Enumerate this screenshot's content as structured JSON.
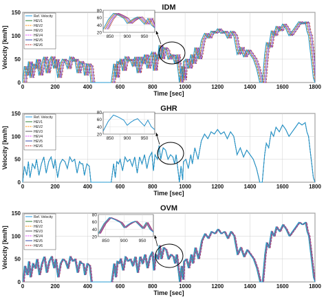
{
  "chart_data": [
    {
      "type": "line",
      "title": "IDM",
      "xlabel": "Time [sec]",
      "ylabel": "Velocity [km/h]",
      "xlim": [
        0,
        1800
      ],
      "ylim": [
        0,
        150
      ],
      "xticks": [
        "0",
        "200",
        "400",
        "600",
        "800",
        "1000",
        "1200",
        "1400",
        "1600",
        "1800"
      ],
      "yticks": [
        "0",
        "50",
        "100",
        "150"
      ],
      "grid": true,
      "legend_position": "top-left",
      "colors": [
        "#1f9be0",
        "#2e7d32",
        "#ff8c00",
        "#5a5a5a",
        "#e040fb",
        "#3949ab",
        "#c62828"
      ],
      "legend": [
        "Ref. Velocity",
        "HEV1",
        "HEV2",
        "HEV3",
        "HEV4",
        "HEV5",
        "HEV6"
      ],
      "reference": {
        "name": "Ref. Velocity",
        "x": [
          0,
          10,
          25,
          35,
          45,
          60,
          75,
          85,
          100,
          115,
          130,
          145,
          160,
          175,
          190,
          200,
          215,
          230,
          245,
          260,
          275,
          290,
          305,
          320,
          335,
          350,
          360,
          370,
          380,
          395,
          410,
          420,
          430,
          445,
          460,
          475,
          490,
          505,
          520,
          535,
          545,
          560,
          570,
          580,
          590,
          600,
          615,
          630,
          645,
          660,
          675,
          690,
          705,
          720,
          735,
          750,
          765,
          780,
          795,
          805,
          815,
          830,
          840,
          850,
          865,
          880,
          895,
          910,
          925,
          935,
          945,
          955,
          965,
          975,
          985,
          990,
          1005,
          1020,
          1035,
          1045,
          1060,
          1080,
          1100,
          1120,
          1140,
          1160,
          1180,
          1200,
          1220,
          1240,
          1260,
          1280,
          1300,
          1320,
          1340,
          1360,
          1380,
          1400,
          1420,
          1440,
          1460,
          1475,
          1490,
          1500,
          1515,
          1530,
          1545,
          1560,
          1580,
          1600,
          1620,
          1640,
          1660,
          1680,
          1700,
          1720,
          1740,
          1750,
          1760,
          1770,
          1780,
          1790,
          1800
        ],
        "values": [
          0,
          35,
          15,
          45,
          10,
          40,
          30,
          50,
          15,
          40,
          55,
          20,
          45,
          55,
          30,
          50,
          10,
          40,
          50,
          45,
          30,
          55,
          45,
          50,
          20,
          45,
          40,
          40,
          15,
          40,
          35,
          0,
          0,
          0,
          0,
          0,
          0,
          0,
          0,
          0,
          0,
          40,
          10,
          45,
          40,
          50,
          25,
          55,
          45,
          50,
          35,
          55,
          20,
          55,
          40,
          60,
          30,
          55,
          65,
          25,
          60,
          50,
          80,
          50,
          75,
          70,
          50,
          60,
          55,
          40,
          60,
          30,
          0,
          35,
          5,
          45,
          50,
          30,
          60,
          40,
          75,
          50,
          90,
          105,
          95,
          110,
          105,
          115,
          105,
          110,
          95,
          110,
          100,
          60,
          75,
          55,
          70,
          60,
          50,
          30,
          0,
          0,
          60,
          85,
          75,
          110,
          100,
          120,
          110,
          125,
          115,
          100,
          110,
          120,
          130,
          125,
          130,
          110,
          100,
          70,
          40,
          10,
          0
        ]
      },
      "inset": {
        "xlim": [
          830,
          980
        ],
        "ylim": [
          20,
          80
        ],
        "xticks": [
          "850",
          "900",
          "950"
        ],
        "yticks": [
          "20",
          "40",
          "60",
          "80"
        ],
        "x": [
          830,
          845,
          860,
          875,
          890,
          900,
          910,
          920,
          930,
          940,
          950,
          960,
          970,
          980
        ],
        "values": [
          28,
          55,
          72,
          66,
          58,
          44,
          52,
          58,
          62,
          52,
          42,
          58,
          40,
          32
        ]
      }
    },
    {
      "type": "line",
      "title": "GHR",
      "xlabel": "Time [sec]",
      "ylabel": "Velocity [km/h]",
      "xlim": [
        0,
        1800
      ],
      "ylim": [
        0,
        150
      ],
      "xticks": [
        "0",
        "200",
        "400",
        "600",
        "800",
        "1000",
        "1200",
        "1400",
        "1600",
        "1800"
      ],
      "yticks": [
        "0",
        "50",
        "100",
        "150"
      ],
      "grid": true,
      "legend_position": "top-left",
      "colors": [
        "#1f9be0",
        "#2e7d32",
        "#ff8c00",
        "#5a5a5a",
        "#e040fb",
        "#3949ab",
        "#c62828"
      ],
      "legend": [
        "Ref. Velocity",
        "HEV1",
        "HEV2",
        "HEV3",
        "HEV4",
        "HEV5",
        "HEV6"
      ],
      "reference": {
        "name": "Ref. Velocity",
        "x": [
          0,
          10,
          25,
          35,
          45,
          60,
          75,
          85,
          100,
          115,
          130,
          145,
          160,
          175,
          190,
          200,
          215,
          230,
          245,
          260,
          275,
          290,
          305,
          320,
          335,
          350,
          360,
          370,
          380,
          395,
          410,
          420,
          430,
          445,
          460,
          475,
          490,
          505,
          520,
          535,
          545,
          560,
          570,
          580,
          590,
          600,
          615,
          630,
          645,
          660,
          675,
          690,
          705,
          720,
          735,
          750,
          765,
          780,
          795,
          805,
          815,
          830,
          840,
          850,
          865,
          880,
          895,
          910,
          925,
          935,
          945,
          955,
          965,
          975,
          985,
          990,
          1005,
          1020,
          1035,
          1045,
          1060,
          1080,
          1100,
          1120,
          1140,
          1160,
          1180,
          1200,
          1220,
          1240,
          1260,
          1280,
          1300,
          1320,
          1340,
          1360,
          1380,
          1400,
          1420,
          1440,
          1460,
          1475,
          1490,
          1500,
          1515,
          1530,
          1545,
          1560,
          1580,
          1600,
          1620,
          1640,
          1660,
          1680,
          1700,
          1720,
          1740,
          1750,
          1760,
          1770,
          1780,
          1790,
          1800
        ],
        "values": [
          0,
          35,
          15,
          45,
          10,
          40,
          30,
          50,
          15,
          40,
          55,
          20,
          45,
          55,
          30,
          50,
          10,
          40,
          50,
          45,
          30,
          55,
          45,
          50,
          20,
          45,
          40,
          40,
          15,
          40,
          35,
          0,
          0,
          0,
          0,
          0,
          0,
          0,
          0,
          0,
          0,
          40,
          10,
          45,
          40,
          50,
          25,
          55,
          45,
          50,
          35,
          55,
          20,
          55,
          40,
          60,
          30,
          55,
          65,
          25,
          60,
          50,
          80,
          50,
          75,
          70,
          50,
          60,
          55,
          40,
          60,
          30,
          0,
          35,
          5,
          45,
          50,
          30,
          60,
          40,
          75,
          50,
          90,
          105,
          95,
          110,
          105,
          115,
          105,
          110,
          95,
          110,
          100,
          60,
          75,
          55,
          70,
          60,
          50,
          30,
          0,
          0,
          60,
          85,
          75,
          110,
          100,
          120,
          110,
          125,
          115,
          100,
          110,
          120,
          130,
          125,
          130,
          110,
          100,
          70,
          40,
          10,
          0
        ]
      },
      "inset": {
        "xlim": [
          830,
          980
        ],
        "ylim": [
          20,
          80
        ],
        "xticks": [
          "850",
          "900",
          "950"
        ],
        "yticks": [
          "20",
          "40",
          "60",
          "80"
        ],
        "x": [
          830,
          845,
          860,
          875,
          890,
          900,
          910,
          920,
          930,
          940,
          950,
          960,
          970,
          980
        ],
        "values": [
          28,
          55,
          72,
          66,
          58,
          44,
          52,
          58,
          62,
          52,
          42,
          58,
          40,
          32
        ]
      }
    },
    {
      "type": "line",
      "title": "OVM",
      "xlabel": "Time [sec]",
      "ylabel": "Velocity [km/h]",
      "xlim": [
        0,
        1800
      ],
      "ylim": [
        0,
        150
      ],
      "xticks": [
        "0",
        "200",
        "400",
        "600",
        "800",
        "1000",
        "1200",
        "1400",
        "1600",
        "1800"
      ],
      "yticks": [
        "0",
        "50",
        "100",
        "150"
      ],
      "grid": true,
      "legend_position": "top-left",
      "colors": [
        "#1f9be0",
        "#2e7d32",
        "#ff8c00",
        "#5a5a5a",
        "#e040fb",
        "#3949ab",
        "#c62828"
      ],
      "legend": [
        "Ref. Velocity",
        "HEV1",
        "HEV2",
        "HEV3",
        "HEV4",
        "HEV5",
        "HEV6"
      ],
      "reference": {
        "name": "Ref. Velocity",
        "x": [
          0,
          10,
          25,
          35,
          45,
          60,
          75,
          85,
          100,
          115,
          130,
          145,
          160,
          175,
          190,
          200,
          215,
          230,
          245,
          260,
          275,
          290,
          305,
          320,
          335,
          350,
          360,
          370,
          380,
          395,
          410,
          420,
          430,
          445,
          460,
          475,
          490,
          505,
          520,
          535,
          545,
          560,
          570,
          580,
          590,
          600,
          615,
          630,
          645,
          660,
          675,
          690,
          705,
          720,
          735,
          750,
          765,
          780,
          795,
          805,
          815,
          830,
          840,
          850,
          865,
          880,
          895,
          910,
          925,
          935,
          945,
          955,
          965,
          975,
          985,
          990,
          1005,
          1020,
          1035,
          1045,
          1060,
          1080,
          1100,
          1120,
          1140,
          1160,
          1180,
          1200,
          1220,
          1240,
          1260,
          1280,
          1300,
          1320,
          1340,
          1360,
          1380,
          1400,
          1420,
          1440,
          1460,
          1475,
          1490,
          1500,
          1515,
          1530,
          1545,
          1560,
          1580,
          1600,
          1620,
          1640,
          1660,
          1680,
          1700,
          1720,
          1740,
          1750,
          1760,
          1770,
          1780,
          1790,
          1800
        ],
        "values": [
          0,
          35,
          15,
          45,
          10,
          40,
          30,
          50,
          15,
          40,
          55,
          20,
          45,
          55,
          30,
          50,
          10,
          40,
          50,
          45,
          30,
          55,
          45,
          50,
          20,
          45,
          40,
          40,
          15,
          40,
          35,
          0,
          0,
          0,
          0,
          0,
          0,
          0,
          0,
          0,
          0,
          40,
          10,
          45,
          40,
          50,
          25,
          55,
          45,
          50,
          35,
          55,
          20,
          55,
          40,
          60,
          30,
          55,
          65,
          25,
          60,
          50,
          80,
          50,
          75,
          70,
          50,
          60,
          55,
          40,
          60,
          30,
          0,
          35,
          5,
          45,
          50,
          30,
          60,
          40,
          75,
          50,
          90,
          105,
          95,
          110,
          105,
          115,
          105,
          110,
          95,
          110,
          100,
          60,
          75,
          55,
          70,
          60,
          50,
          30,
          0,
          0,
          60,
          85,
          75,
          110,
          100,
          120,
          110,
          125,
          115,
          100,
          110,
          120,
          130,
          125,
          130,
          110,
          100,
          70,
          40,
          10,
          0
        ]
      },
      "inset": {
        "xlim": [
          830,
          980
        ],
        "ylim": [
          20,
          80
        ],
        "xticks": [
          "850",
          "900",
          "950"
        ],
        "yticks": [
          "20",
          "40",
          "60",
          "80"
        ],
        "x": [
          830,
          845,
          860,
          875,
          890,
          900,
          910,
          920,
          930,
          940,
          950,
          960,
          970,
          980
        ],
        "values": [
          28,
          55,
          72,
          66,
          58,
          44,
          52,
          58,
          62,
          52,
          42,
          58,
          40,
          32
        ]
      }
    }
  ]
}
